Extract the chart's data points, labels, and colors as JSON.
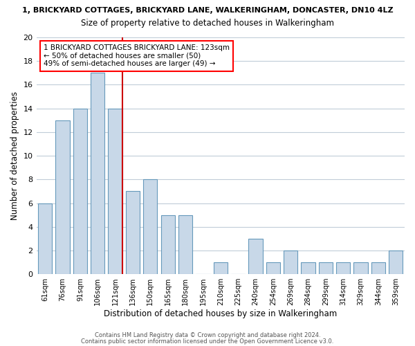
{
  "title": "1, BRICKYARD COTTAGES, BRICKYARD LANE, WALKERINGHAM, DONCASTER, DN10 4LZ",
  "subtitle": "Size of property relative to detached houses in Walkeringham",
  "xlabel": "Distribution of detached houses by size in Walkeringham",
  "ylabel": "Number of detached properties",
  "bar_labels": [
    "61sqm",
    "76sqm",
    "91sqm",
    "106sqm",
    "121sqm",
    "136sqm",
    "150sqm",
    "165sqm",
    "180sqm",
    "195sqm",
    "210sqm",
    "225sqm",
    "240sqm",
    "254sqm",
    "269sqm",
    "284sqm",
    "299sqm",
    "314sqm",
    "329sqm",
    "344sqm",
    "359sqm"
  ],
  "bar_values": [
    6,
    13,
    14,
    17,
    14,
    7,
    8,
    5,
    5,
    0,
    1,
    0,
    3,
    1,
    2,
    1,
    1,
    1,
    1,
    1,
    2
  ],
  "bar_color": "#c8d8e8",
  "bar_edge_color": "#6699bb",
  "marker_line_color": "#cc0000",
  "marker_bar_index": 4,
  "ylim": [
    0,
    20
  ],
  "yticks": [
    0,
    2,
    4,
    6,
    8,
    10,
    12,
    14,
    16,
    18,
    20
  ],
  "annotation_title": "1 BRICKYARD COTTAGES BRICKYARD LANE: 123sqm",
  "annotation_line1": "← 50% of detached houses are smaller (50)",
  "annotation_line2": "49% of semi-detached houses are larger (49) →",
  "footer1": "Contains HM Land Registry data © Crown copyright and database right 2024.",
  "footer2": "Contains public sector information licensed under the Open Government Licence v3.0.",
  "background_color": "#ffffff",
  "grid_color": "#c0ccd8"
}
